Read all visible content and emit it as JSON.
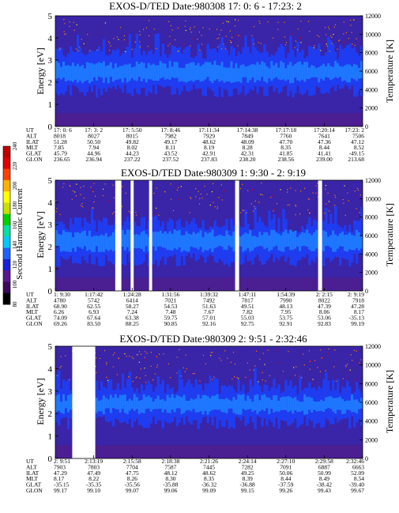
{
  "chart_data": {
    "type": "heatmap",
    "colorbar": {
      "label": "Second Harmonic Current",
      "range": [
        80,
        240
      ],
      "ticks": [
        "80",
        "100",
        "120",
        "140",
        "160",
        "180",
        "200",
        "220",
        "240"
      ],
      "colors": [
        "#000000",
        "#3a0a5c",
        "#5a1890",
        "#1a20d8",
        "#1f60ff",
        "#00c8ff",
        "#00e0a0",
        "#00d000",
        "#c8e000",
        "#ffff00",
        "#ffb000",
        "#ff4000",
        "#e00000",
        "#c00000"
      ]
    },
    "colors": {
      "background": "#3a24a8",
      "band_outer": "#1f3cf0",
      "band_core": "#1e78ff",
      "low": "#5a1a80",
      "speck": "#ff8000",
      "gap": "#ffffff"
    },
    "panels": [
      {
        "title": "EXOS-D/TED   Date:980308  17: 0: 6 - 17:23: 2",
        "ylabel": "Energy [eV]",
        "ylabel_right": "Temperature [K]",
        "ylim": [
          0,
          5
        ],
        "yticks": [
          "0",
          "1",
          "2",
          "3",
          "4",
          "5"
        ],
        "ylim_right": [
          0,
          12000
        ],
        "yticks_right": [
          "0",
          "2000",
          "4000",
          "6000",
          "8000",
          "10000",
          "12000"
        ],
        "band": {
          "outer": [
            1.6,
            3.4
          ],
          "core": [
            2.1,
            2.8
          ]
        },
        "gaps": [],
        "row_labels": [
          "UT",
          "ALT",
          "ILAT",
          "MLT",
          "GLAT",
          "GLON"
        ],
        "columns": [
          [
            "17: 0: 6",
            "8018",
            "51.28",
            "7.85",
            "45.79",
            "236.65"
          ],
          [
            "17: 3: 2",
            "8027",
            "50.50",
            "7.94",
            "44.96",
            "236.94"
          ],
          [
            "17: 5:50",
            "8015",
            "49.82",
            "8.02",
            "44.23",
            "237.22"
          ],
          [
            "17: 8:46",
            "7982",
            "49.17",
            "8.11",
            "43.52",
            "237.52"
          ],
          [
            "17:11:34",
            "7929",
            "48.62",
            "8.19",
            "42.91",
            "237.83"
          ],
          [
            "17:14:38",
            "7849",
            "48.09",
            "8.28",
            "42.31",
            "238.20"
          ],
          [
            "17:17:18",
            "7760",
            "47.70",
            "8.35",
            "41.85",
            "238.56"
          ],
          [
            "17:20:14",
            "7641",
            "47.36",
            "8.44",
            "41.41",
            "239.00"
          ],
          [
            "17:23: 2",
            "7506",
            "47.12",
            "8.52",
            "-49.15",
            "213.68"
          ]
        ]
      },
      {
        "title": "EXOS-D/TED   Date:980309  1: 9:30 - 2: 9:19",
        "ylabel": "Energy [eV]",
        "ylabel_right": "Temperature [K]",
        "ylim": [
          0,
          5
        ],
        "yticks": [
          "0",
          "1",
          "2",
          "3",
          "4",
          "5"
        ],
        "ylim_right": [
          0,
          12000
        ],
        "yticks_right": [
          "0",
          "2000",
          "4000",
          "6000",
          "8000",
          "10000",
          "12000"
        ],
        "band": {
          "outer": [
            1.4,
            3.0
          ],
          "core": [
            1.9,
            2.6
          ]
        },
        "gaps": [
          [
            0.195,
            0.215
          ],
          [
            0.245,
            0.255
          ],
          [
            0.305,
            0.315
          ],
          [
            0.585,
            0.598
          ],
          [
            0.855,
            0.868
          ]
        ],
        "row_labels": [
          "UT",
          "ALT",
          "ILAT",
          "MLT",
          "GLAT",
          "GLON"
        ],
        "columns": [
          [
            "1: 9:30",
            "4780",
            "68.90",
            "6.26",
            "74.09",
            "69.26"
          ],
          [
            "1:17:42",
            "5742",
            "62.55",
            "6.93",
            "67.64",
            "83.50"
          ],
          [
            "1:24:28",
            "6414",
            "58.27",
            "7.24",
            "63.38",
            "88.25"
          ],
          [
            "1:31:56",
            "7021",
            "54.53",
            "7.48",
            "59.75",
            "90.85"
          ],
          [
            "1:39:32",
            "7492",
            "51.63",
            "7.67",
            "57.01",
            "92.16"
          ],
          [
            "1:47:11",
            "7817",
            "49.51",
            "7.82",
            "55.03",
            "92.75"
          ],
          [
            "1:54:39",
            "7990",
            "48.13",
            "7.95",
            "53.75",
            "92.91"
          ],
          [
            "2: 2:15",
            "8022",
            "47.39",
            "8.06",
            "53.06",
            "92.83"
          ],
          [
            "2: 9:19",
            "7918",
            "47.28",
            "8.17",
            "-35.13",
            "99.19"
          ]
        ]
      },
      {
        "title": "EXOS-D/TED   Date:980309  2: 9:51 - 2:32:46",
        "ylabel": "Energy [eV]",
        "ylabel_right": "Temperature [K]",
        "ylim": [
          0,
          5
        ],
        "yticks": [
          "0",
          "1",
          "2",
          "3",
          "4",
          "5"
        ],
        "ylim_right": [
          0,
          12000
        ],
        "yticks_right": [
          "0",
          "2000",
          "4000",
          "6000",
          "8000",
          "10000",
          "12000"
        ],
        "band": {
          "outer": [
            1.6,
            3.2
          ],
          "core": [
            2.1,
            2.7
          ]
        },
        "gaps": [
          [
            0.055,
            0.13
          ]
        ],
        "row_labels": [
          "UT",
          "ALT",
          "ILAT",
          "MLT",
          "GLAT",
          "GLON"
        ],
        "columns": [
          [
            "2: 9:51",
            "7903",
            "47.29",
            "8.17",
            "-35.15",
            "99.17"
          ],
          [
            "2:13:19",
            "7803",
            "47.49",
            "8.22",
            "-35.35",
            "99.10"
          ],
          [
            "2:15:58",
            "7704",
            "47.75",
            "8.26",
            "-35.56",
            "99.07"
          ],
          [
            "2:18:38",
            "7587",
            "48.12",
            "8.30",
            "-35.88",
            "99.06"
          ],
          [
            "2:21:26",
            "7445",
            "48.62",
            "8.35",
            "-36.32",
            "99.09"
          ],
          [
            "2:24:14",
            "7282",
            "49.25",
            "8.39",
            "-36.88",
            "99.15"
          ],
          [
            "2:27:10",
            "7091",
            "50.06",
            "8.44",
            "-37.59",
            "99.26"
          ],
          [
            "2:29:58",
            "6887",
            "50.99",
            "8.49",
            "-38.42",
            "99.43"
          ],
          [
            "2:32:46",
            "6663",
            "52.09",
            "8.54",
            "-39.40",
            "99.67"
          ]
        ]
      }
    ]
  }
}
